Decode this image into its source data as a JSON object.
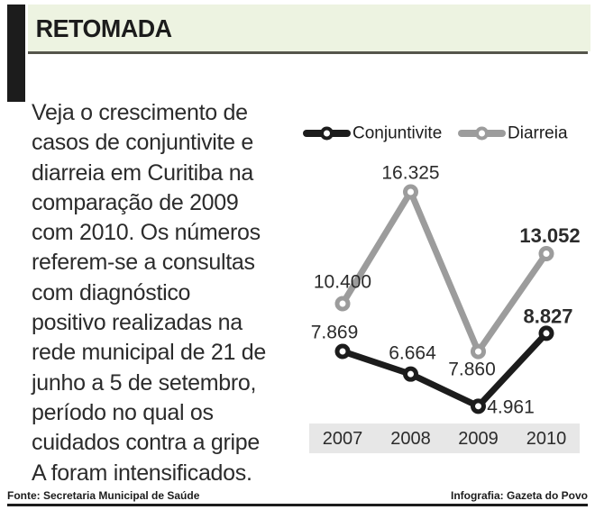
{
  "header": {
    "title": "RETOMADA",
    "background_color": "#edf3e1",
    "accent_color": "#1c1c1c"
  },
  "intro": {
    "text": "Veja o crescimento de\ncasos de conjuntivite e\ndiarreia em Curitiba na\ncomparação de 2009\ncom 2010. Os números\nreferem-se a consultas\ncom diagnóstico\npositivo realizadas na\nrede municipal de 21 de\njunho a 5 de setembro,\nperíodo no qual os\ncuidados contra a gripe\nA foram intensificados."
  },
  "chart_data": {
    "type": "line",
    "categories": [
      "2007",
      "2008",
      "2009",
      "2010"
    ],
    "series": [
      {
        "name": "Diarreia",
        "color": "#9c9c9c",
        "values": [
          10400,
          16325,
          7860,
          13052
        ],
        "labels": [
          "10.400",
          "16.325",
          "7.860",
          "13.052"
        ],
        "bold_labels": [
          false,
          false,
          false,
          true
        ]
      },
      {
        "name": "Conjuntivite",
        "color": "#1c1c1c",
        "values": [
          7869,
          6664,
          4961,
          8827
        ],
        "labels": [
          "7.869",
          "6.664",
          "4.961",
          "8.827"
        ],
        "bold_labels": [
          false,
          false,
          false,
          true
        ]
      }
    ],
    "legend_order": [
      "Conjuntivite",
      "Diarreia"
    ],
    "legend_position": "top",
    "grid": false,
    "marker": "open-circle",
    "axis_band_color": "#e7e7e7",
    "label_color": "#2b2b2b",
    "ylim": [
      4000,
      17000
    ]
  },
  "footer": {
    "source": "Fonte: Secretaria Municipal de Saúde",
    "credit": "Infografia: Gazeta do Povo"
  }
}
